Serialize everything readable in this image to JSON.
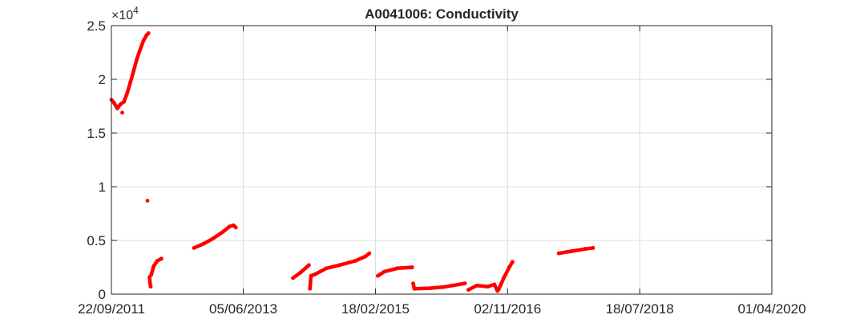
{
  "chart_data": {
    "type": "scatter",
    "title": "A0041006: Conductivity",
    "xlabel": "",
    "ylabel": "",
    "x_axis": {
      "kind": "date",
      "range": [
        "2011-09-22",
        "2020-04-01"
      ],
      "ticks": [
        {
          "date": "2011-09-22",
          "label": "22/09/2011"
        },
        {
          "date": "2013-06-05",
          "label": "05/06/2013"
        },
        {
          "date": "2015-02-18",
          "label": "18/02/2015"
        },
        {
          "date": "2016-11-02",
          "label": "02/11/2016"
        },
        {
          "date": "2018-07-18",
          "label": "18/07/2018"
        },
        {
          "date": "2020-04-01",
          "label": "01/04/2020"
        }
      ]
    },
    "y_axis": {
      "range": [
        0,
        25000
      ],
      "ticks": [
        {
          "value": 0,
          "label": "0"
        },
        {
          "value": 5000,
          "label": "0.5"
        },
        {
          "value": 10000,
          "label": "1"
        },
        {
          "value": 15000,
          "label": "1.5"
        },
        {
          "value": 20000,
          "label": "2"
        },
        {
          "value": 25000,
          "label": "2.5"
        }
      ],
      "exponent_base": "×10",
      "exponent_power": "4"
    },
    "grid": true,
    "marker_color": "#ff0000",
    "series": [
      {
        "segments": [
          [
            [
              "2011-09-22",
              18100
            ],
            [
              "2011-10-05",
              17800
            ],
            [
              "2011-10-20",
              17300
            ],
            [
              "2011-11-05",
              17700
            ],
            [
              "2011-11-20",
              17900
            ],
            [
              "2011-12-05",
              18700
            ],
            [
              "2011-12-20",
              19700
            ],
            [
              "2012-01-05",
              20800
            ],
            [
              "2012-01-20",
              21900
            ],
            [
              "2012-02-05",
              22800
            ],
            [
              "2012-02-20",
              23600
            ],
            [
              "2012-03-05",
              24100
            ],
            [
              "2012-03-15",
              24300
            ]
          ],
          [
            [
              "2011-11-12",
              16900
            ]
          ],
          [
            [
              "2012-03-10",
              8700
            ]
          ],
          [
            [
              "2012-03-20",
              1600
            ],
            [
              "2012-03-22",
              1000
            ],
            [
              "2012-03-25",
              700
            ]
          ],
          [
            [
              "2012-03-28",
              1800
            ],
            [
              "2012-04-08",
              2600
            ],
            [
              "2012-04-25",
              3100
            ],
            [
              "2012-05-15",
              3300
            ]
          ],
          [
            [
              "2012-10-15",
              4300
            ],
            [
              "2012-12-01",
              4700
            ],
            [
              "2013-01-15",
              5200
            ],
            [
              "2013-03-01",
              5800
            ],
            [
              "2013-04-01",
              6300
            ],
            [
              "2013-04-20",
              6400
            ],
            [
              "2013-05-01",
              6200
            ]
          ],
          [
            [
              "2014-01-25",
              1500
            ],
            [
              "2014-03-01",
              2000
            ],
            [
              "2014-04-10",
              2700
            ]
          ],
          [
            [
              "2014-04-15",
              500
            ],
            [
              "2014-04-20",
              1700
            ],
            [
              "2014-05-15",
              1900
            ],
            [
              "2014-07-01",
              2400
            ],
            [
              "2014-09-01",
              2700
            ],
            [
              "2014-11-15",
              3100
            ],
            [
              "2015-01-01",
              3500
            ],
            [
              "2015-01-20",
              3800
            ]
          ],
          [
            [
              "2015-03-01",
              1700
            ],
            [
              "2015-04-01",
              2100
            ],
            [
              "2015-06-01",
              2400
            ],
            [
              "2015-08-10",
              2500
            ]
          ],
          [
            [
              "2015-08-15",
              1000
            ],
            [
              "2015-08-20",
              500
            ],
            [
              "2015-11-01",
              550
            ],
            [
              "2016-01-01",
              650
            ],
            [
              "2016-02-15",
              800
            ],
            [
              "2016-04-15",
              1000
            ]
          ],
          [
            [
              "2016-05-01",
              400
            ],
            [
              "2016-06-10",
              800
            ],
            [
              "2016-08-01",
              700
            ],
            [
              "2016-09-01",
              900
            ],
            [
              "2016-09-15",
              300
            ]
          ],
          [
            [
              "2016-09-20",
              400
            ],
            [
              "2016-10-15",
              1500
            ],
            [
              "2016-11-10",
              2500
            ],
            [
              "2016-11-25",
              3000
            ]
          ],
          [
            [
              "2017-07-01",
              3800
            ],
            [
              "2017-09-01",
              4000
            ],
            [
              "2017-11-01",
              4200
            ],
            [
              "2017-12-10",
              4300
            ]
          ]
        ]
      }
    ]
  }
}
